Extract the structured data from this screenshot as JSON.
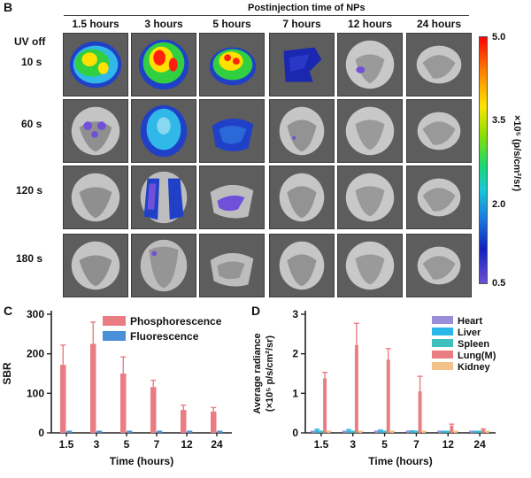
{
  "panel_b": {
    "letter": "B",
    "header": "Postinjection time of NPs",
    "time_labels": [
      "1.5 hours",
      "3 hours",
      "5 hours",
      "7 hours",
      "12 hours",
      "24 hours"
    ],
    "row_labels": [
      "10 s",
      "60 s",
      "120 s",
      "180 s"
    ],
    "uv_label": "UV off",
    "colorbar": {
      "max_label": "5.0",
      "ticks": [
        "3.5",
        "2.0"
      ],
      "min_label": "0.5",
      "unit_label": "×10⁵ (p/s/cm²/sr)"
    },
    "colors": {
      "tile_bg": "#5d5d5d",
      "hot": "#ff2010",
      "warm": "#ffe000",
      "mid": "#30d040",
      "cool": "#30b8e8",
      "cold": "#2040c8",
      "faint": "#7050d8"
    }
  },
  "chart_data": [
    {
      "type": "bar",
      "panel": "C",
      "categories": [
        "1.5",
        "3",
        "5",
        "7",
        "12",
        "24"
      ],
      "series": [
        {
          "name": "Phosphorescence",
          "values": [
            172,
            225,
            150,
            116,
            58,
            54
          ],
          "errors": [
            50,
            55,
            42,
            17,
            12,
            10
          ],
          "color": "#e97d83"
        },
        {
          "name": "Fluorescence",
          "values": [
            3,
            3,
            3,
            3,
            3,
            3
          ],
          "errors": [
            1,
            1,
            1,
            1,
            1,
            1
          ],
          "color": "#4a90d8"
        }
      ],
      "xlabel": "Time (hours)",
      "ylabel": "SBR",
      "ylim": [
        0,
        300
      ],
      "yticks": [
        "0",
        "100",
        "200",
        "300"
      ],
      "legend": "top-right"
    },
    {
      "type": "bar",
      "panel": "D",
      "categories": [
        "1.5",
        "3",
        "5",
        "7",
        "12",
        "24"
      ],
      "series": [
        {
          "name": "Heart",
          "values": [
            0.03,
            0.03,
            0.03,
            0.03,
            0.03,
            0.03
          ],
          "errors": [
            0.01,
            0.01,
            0.01,
            0.01,
            0.01,
            0.01
          ],
          "color": "#9a8ed8"
        },
        {
          "name": "Liver",
          "values": [
            0.07,
            0.06,
            0.05,
            0.04,
            0.03,
            0.03
          ],
          "errors": [
            0.02,
            0.02,
            0.02,
            0.01,
            0.01,
            0.01
          ],
          "color": "#2ab7e8"
        },
        {
          "name": "Spleen",
          "values": [
            0.03,
            0.03,
            0.03,
            0.03,
            0.03,
            0.03
          ],
          "errors": [
            0.01,
            0.01,
            0.01,
            0.01,
            0.01,
            0.01
          ],
          "color": "#40bfbf"
        },
        {
          "name": "Lung(M)",
          "values": [
            1.38,
            2.22,
            1.85,
            1.05,
            0.18,
            0.08
          ],
          "errors": [
            0.15,
            0.55,
            0.28,
            0.38,
            0.04,
            0.02
          ],
          "color": "#e97d83"
        },
        {
          "name": "Kidney",
          "values": [
            0.03,
            0.03,
            0.03,
            0.03,
            0.03,
            0.03
          ],
          "errors": [
            0.01,
            0.01,
            0.01,
            0.01,
            0.01,
            0.01
          ],
          "color": "#f3c28a"
        }
      ],
      "xlabel": "Time (hours)",
      "ylabel_line1": "Average radiance",
      "ylabel_line2": "(×10⁵ p/s/cm²/sr)",
      "ylim": [
        0,
        3
      ],
      "yticks": [
        "0",
        "1",
        "2",
        "3"
      ],
      "legend": "top-right"
    }
  ]
}
